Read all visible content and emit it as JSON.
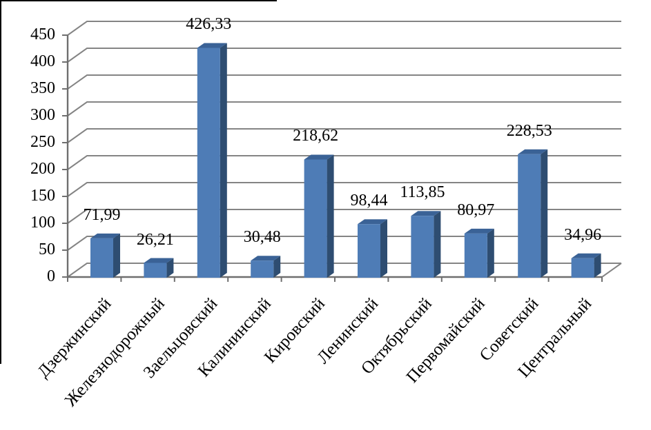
{
  "chart_data": {
    "type": "bar",
    "style": "3d-column",
    "title": "",
    "xlabel": "",
    "ylabel": "",
    "categories": [
      "Дзержинский",
      "Железнодорожный",
      "Заельцовский",
      "Калининский",
      "Кировский",
      "Ленинский",
      "Октябрьский",
      "Первомайский",
      "Советский",
      "Центральный"
    ],
    "values": [
      71.99,
      26.21,
      426.33,
      30.48,
      218.62,
      98.44,
      113.85,
      80.97,
      228.53,
      34.96
    ],
    "value_labels": [
      "71,99",
      "26,21",
      "426,33",
      "30,48",
      "218,62",
      "98,44",
      "113,85",
      "80,97",
      "228,53",
      "34,96"
    ],
    "y_ticks": [
      0,
      50,
      100,
      150,
      200,
      250,
      300,
      350,
      400,
      450
    ],
    "ylim": [
      0,
      450
    ],
    "grid": true,
    "legend": false,
    "colors": {
      "bar_front": "#4E7CB6",
      "bar_top": "#3A6296",
      "bar_side": "#2E4D71",
      "gridline": "#848484",
      "axis": "#6E6E6E",
      "text": "#000000"
    }
  }
}
